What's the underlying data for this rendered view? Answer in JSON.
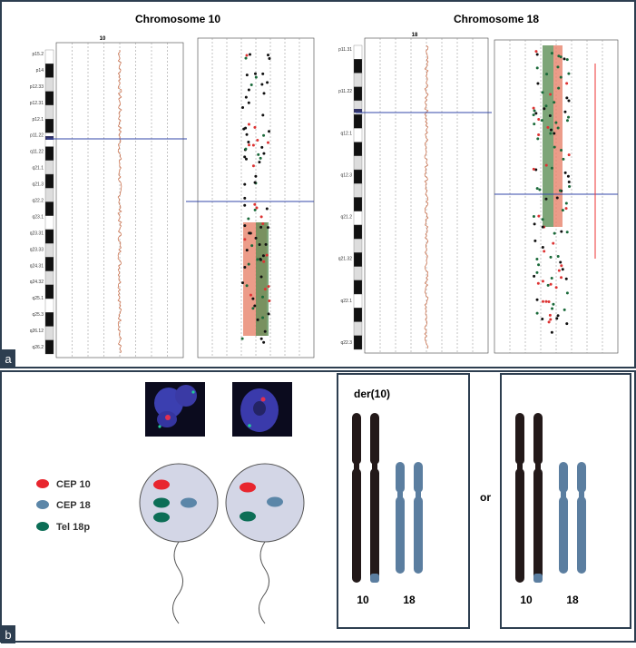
{
  "panel_a": {
    "label": "a",
    "chr10": {
      "title": "Chromosome 10",
      "ideogram_label": "10",
      "bands": [
        "p15.2",
        "p14",
        "p12.33",
        "p12.31",
        "p12.1",
        "p11.22",
        "q11.22",
        "q21.1",
        "q21.3",
        "q22.2",
        "q23.1",
        "q23.31",
        "q23.33",
        "q24.31",
        "q24.32",
        "q25.1",
        "q25.3",
        "q26.12",
        "q26.2"
      ]
    },
    "chr18": {
      "title": "Chromosome 18",
      "ideogram_label": "18",
      "bands": [
        "p11.31",
        "p11.22",
        "q12.1",
        "q12.3",
        "q21.2",
        "q21.32",
        "q22.1",
        "q22.3"
      ]
    }
  },
  "panel_b": {
    "label": "b",
    "legend": [
      "CEP 10",
      "CEP 18",
      "Tel 18p"
    ],
    "karyotype_1": {
      "title": "der(10)",
      "labels": [
        "10",
        "18"
      ]
    },
    "separator": "or",
    "karyotype_2": {
      "labels": [
        "10",
        "18"
      ]
    }
  }
}
